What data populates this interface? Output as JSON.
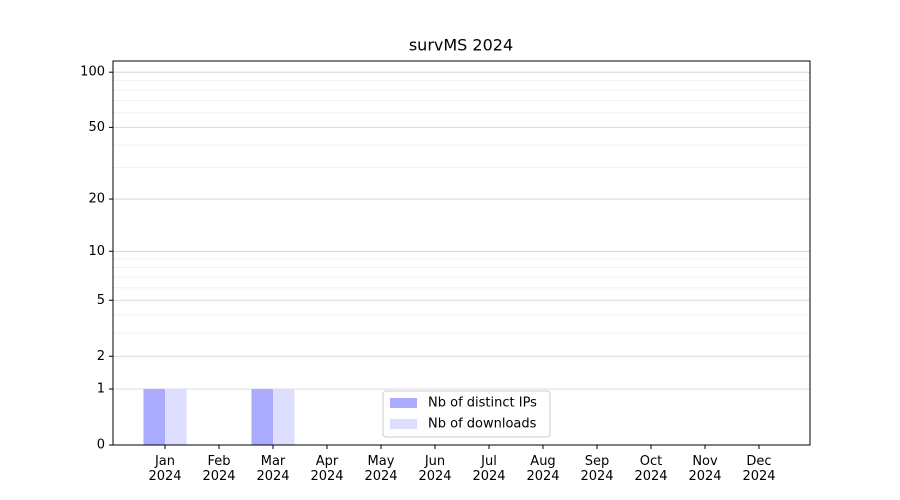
{
  "chart_data": {
    "type": "bar",
    "title": "survMS 2024",
    "categories": [
      "Jan\n2024",
      "Feb\n2024",
      "Mar\n2024",
      "Apr\n2024",
      "May\n2024",
      "Jun\n2024",
      "Jul\n2024",
      "Aug\n2024",
      "Sep\n2024",
      "Oct\n2024",
      "Nov\n2024",
      "Dec\n2024"
    ],
    "series": [
      {
        "name": "Nb of distinct IPs",
        "color": "#aaaaff",
        "values": [
          1,
          0,
          1,
          0,
          0,
          0,
          0,
          0,
          0,
          0,
          0,
          0
        ]
      },
      {
        "name": "Nb of downloads",
        "color": "#ddddff",
        "values": [
          1,
          0,
          1,
          0,
          0,
          0,
          0,
          0,
          0,
          0,
          0,
          0
        ]
      }
    ],
    "yscale": "log1p",
    "ylim": [
      0,
      115
    ],
    "yticks": [
      0,
      1,
      2,
      5,
      10,
      20,
      50,
      100
    ],
    "yminorticks": [
      3,
      4,
      6,
      7,
      8,
      9,
      30,
      40,
      60,
      70,
      80,
      90
    ],
    "grid": true,
    "legend": "lower center"
  }
}
